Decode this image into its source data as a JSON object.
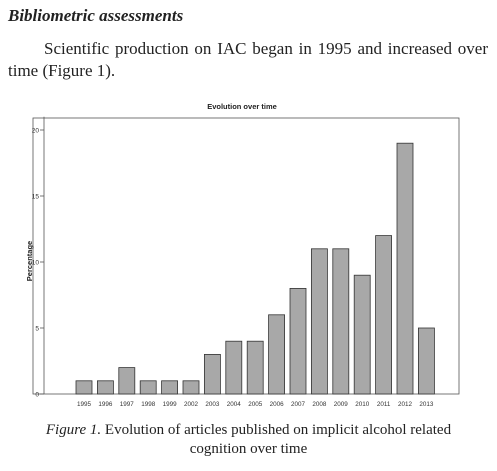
{
  "section": {
    "heading": "Bibliometric assessments",
    "paragraph": "Scientific production on IAC began in 1995 and increased over time (Figure 1)."
  },
  "caption": {
    "lead": "Figure 1.",
    "line1": " Evolution of articles published on implicit alcohol related",
    "line2": "cognition over time"
  },
  "chart_data": {
    "type": "bar",
    "title": "Evolution over time",
    "xlabel": "",
    "ylabel": "Percentage",
    "ylim": [
      0,
      21
    ],
    "yticks": [
      0,
      5,
      10,
      15,
      20
    ],
    "categories": [
      "1995",
      "1996",
      "1997",
      "1998",
      "1999",
      "2002",
      "2003",
      "2004",
      "2005",
      "2006",
      "2007",
      "2008",
      "2009",
      "2010",
      "2011",
      "2012",
      "2013"
    ],
    "values": [
      1,
      1,
      2,
      1,
      1,
      1,
      3,
      4,
      4,
      6,
      8,
      11,
      11,
      9,
      12,
      19,
      5
    ],
    "bar_color": "#a8a8a8",
    "grid": false,
    "legend": "none"
  }
}
